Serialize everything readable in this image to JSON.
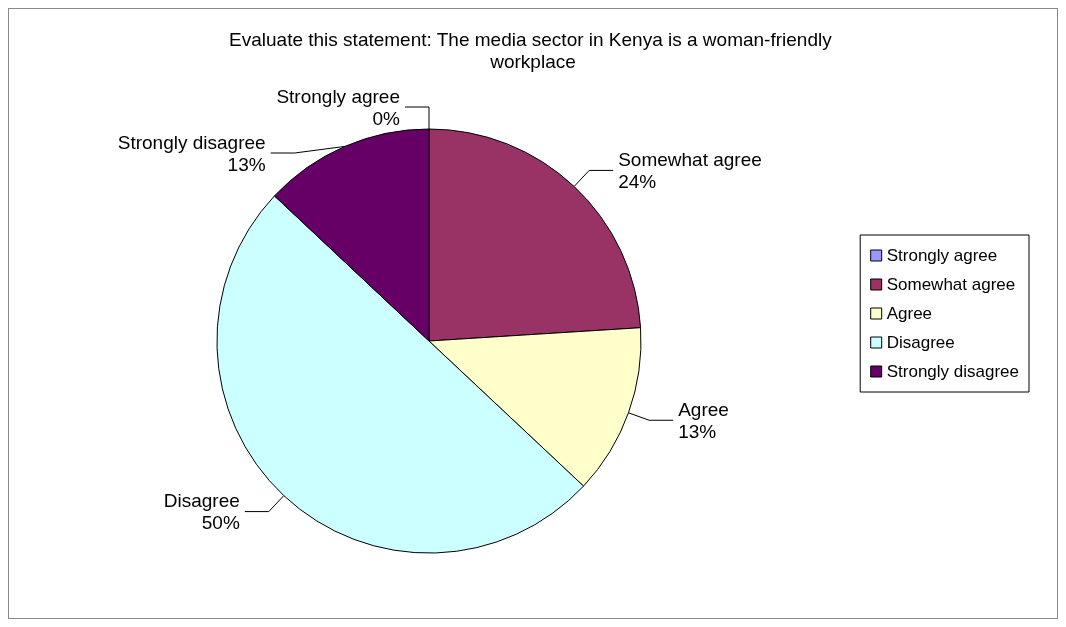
{
  "chart_data": {
    "type": "pie",
    "title": "Evaluate this statement: The media sector in Kenya is a woman-friendly workplace",
    "categories": [
      "Strongly agree",
      "Somewhat agree",
      "Agree",
      "Disagree",
      "Strongly disagree"
    ],
    "values": [
      0,
      24,
      13,
      50,
      13
    ],
    "colors": [
      "#9999ff",
      "#993366",
      "#ffffcc",
      "#ccffff",
      "#660066"
    ],
    "value_labels": [
      "0%",
      "24%",
      "13%",
      "50%",
      "13%"
    ],
    "legend": "right"
  }
}
